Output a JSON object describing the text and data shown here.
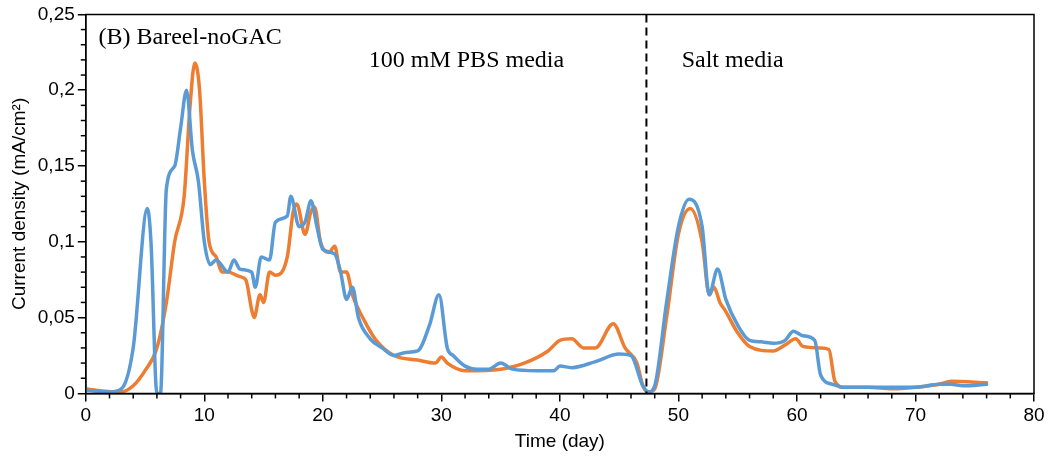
{
  "chart_data": {
    "type": "line",
    "xlabel": "Time (day)",
    "ylabel": "Current density (mA/cm²)",
    "annotations": [
      "(B) Bareel-noGAC",
      "100 mM PBS media",
      "Salt media"
    ],
    "xlim": [
      0,
      80
    ],
    "xticks": [
      0,
      10,
      20,
      30,
      40,
      50,
      60,
      70,
      80
    ],
    "ylim": [
      0,
      0.25
    ],
    "yticks": [
      {
        "value": 0,
        "label": "0"
      },
      {
        "value": 0.05,
        "label": "0,05"
      },
      {
        "value": 0.1,
        "label": "0,1"
      },
      {
        "value": 0.15,
        "label": "0,15"
      },
      {
        "value": 0.2,
        "label": "0,2"
      },
      {
        "value": 0.25,
        "label": "0,25"
      }
    ],
    "grid": false,
    "legend": false,
    "marker": "none",
    "line_style": "solid",
    "ref_lines": [
      {
        "axis": "x",
        "value": 47.3,
        "color": "#000000",
        "line_style": "dashed"
      }
    ],
    "series": [
      {
        "color": "#5b9bd5",
        "x": [
          0,
          2,
          3,
          4,
          5.2,
          5.5,
          6,
          6.3,
          6.8,
          7.5,
          8,
          8.5,
          9,
          9.5,
          10,
          10.5,
          11,
          12,
          12.5,
          13,
          14,
          14.3,
          14.8,
          15.5,
          16,
          17,
          17.3,
          18,
          18.5,
          19,
          19.5,
          20,
          21,
          21.5,
          22,
          22.5,
          23,
          24,
          25,
          26,
          27,
          28,
          29,
          29.8,
          30.5,
          31,
          32,
          33,
          34,
          35,
          36,
          38,
          39.5,
          40,
          41,
          43,
          45,
          46,
          47,
          47.5,
          48,
          49,
          50,
          50.9,
          52,
          52.6,
          53.3,
          54,
          55,
          56,
          57,
          58,
          59,
          59.7,
          60.5,
          61.5,
          62,
          63,
          64,
          66,
          70,
          72,
          73,
          74,
          76
        ],
        "values": [
          0.002,
          0.001,
          0.003,
          0.03,
          0.122,
          0.1,
          0,
          0,
          0.135,
          0.15,
          0.175,
          0.2,
          0.16,
          0.14,
          0.1,
          0.085,
          0.088,
          0.08,
          0.088,
          0.082,
          0.08,
          0.07,
          0.09,
          0.088,
          0.113,
          0.117,
          0.13,
          0.11,
          0.113,
          0.127,
          0.11,
          0.095,
          0.092,
          0.08,
          0.062,
          0.07,
          0.05,
          0.036,
          0.03,
          0.025,
          0.027,
          0.028,
          0.045,
          0.065,
          0.03,
          0.025,
          0.018,
          0.016,
          0.016,
          0.02,
          0.016,
          0.015,
          0.015,
          0.018,
          0.017,
          0.021,
          0.026,
          0.025,
          0.005,
          0.001,
          0.005,
          0.06,
          0.11,
          0.128,
          0.11,
          0.065,
          0.082,
          0.062,
          0.045,
          0.035,
          0.034,
          0.033,
          0.035,
          0.041,
          0.038,
          0.035,
          0.012,
          0.006,
          0.004,
          0.004,
          0.004,
          0.006,
          0.006,
          0.005,
          0.006
        ]
      },
      {
        "color": "#ed7d31",
        "x": [
          0,
          1,
          3,
          4,
          5,
          6,
          6.8,
          7.5,
          8.3,
          8.8,
          9.2,
          9.6,
          10,
          10.4,
          11,
          11.5,
          12,
          13,
          13.5,
          14,
          14.2,
          14.7,
          15,
          15.5,
          16,
          17,
          17.5,
          17.8,
          18.5,
          19,
          19.3,
          19.8,
          20.5,
          21,
          21.5,
          22,
          22.5,
          23.5,
          24.5,
          26,
          28,
          29.5,
          30,
          30.5,
          32,
          35,
          37,
          39,
          40,
          41,
          42,
          43,
          44.5,
          45.5,
          46.5,
          47,
          47.5,
          48,
          49,
          50,
          51,
          52,
          52.6,
          53,
          53.5,
          54,
          55,
          56,
          58,
          59,
          59.9,
          60.5,
          62,
          62.7,
          63.2,
          64,
          66,
          68,
          70,
          72,
          73,
          76
        ],
        "values": [
          0.003,
          0.002,
          0.001,
          0.005,
          0.015,
          0.03,
          0.06,
          0.1,
          0.13,
          0.19,
          0.218,
          0.2,
          0.14,
          0.1,
          0.09,
          0.08,
          0.08,
          0.077,
          0.075,
          0.055,
          0.05,
          0.065,
          0.06,
          0.08,
          0.078,
          0.09,
          0.12,
          0.125,
          0.105,
          0.12,
          0.123,
          0.1,
          0.093,
          0.097,
          0.08,
          0.08,
          0.065,
          0.048,
          0.035,
          0.025,
          0.022,
          0.02,
          0.024,
          0.02,
          0.015,
          0.016,
          0.02,
          0.028,
          0.035,
          0.036,
          0.03,
          0.03,
          0.046,
          0.03,
          0.02,
          0.005,
          0.001,
          0.003,
          0.05,
          0.105,
          0.122,
          0.1,
          0.065,
          0.07,
          0.06,
          0.054,
          0.04,
          0.031,
          0.028,
          0.032,
          0.036,
          0.031,
          0.03,
          0.029,
          0.008,
          0.004,
          0.004,
          0.003,
          0.004,
          0.006,
          0.008,
          0.007
        ]
      }
    ]
  }
}
